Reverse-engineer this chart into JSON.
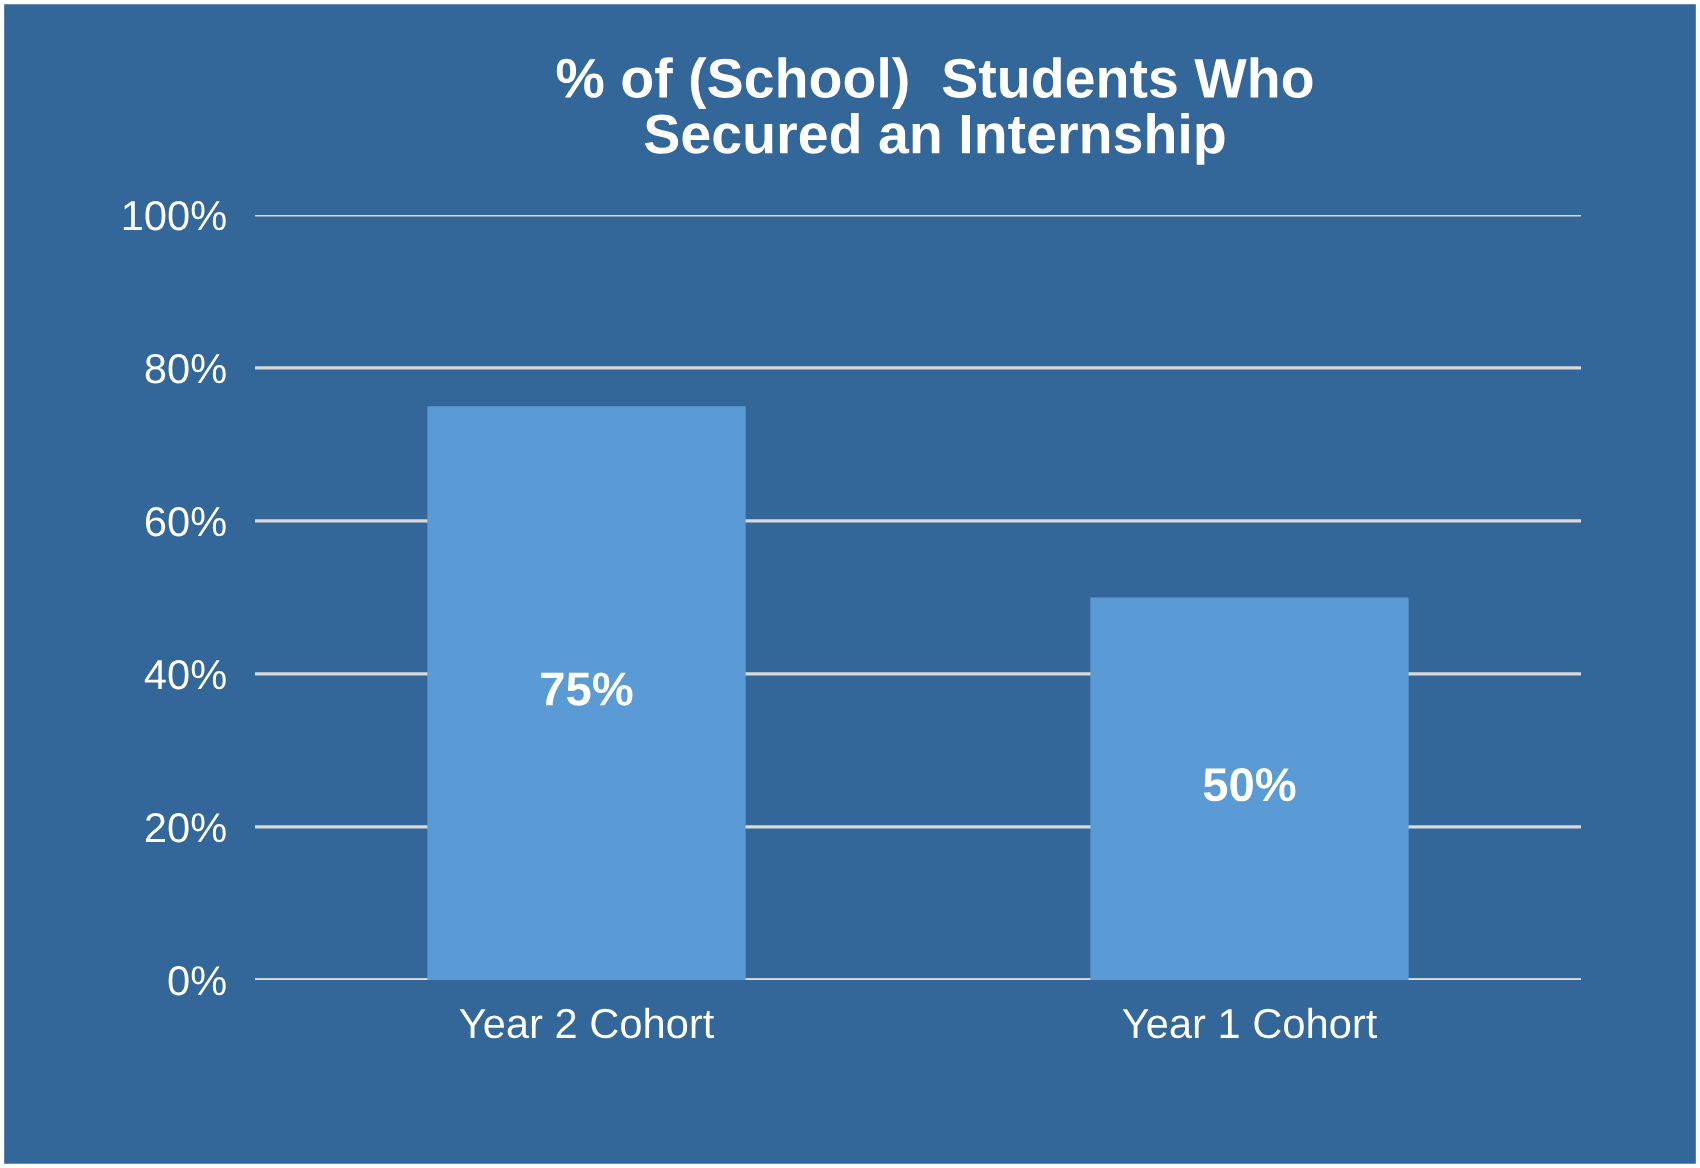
{
  "chart_data": {
    "type": "bar",
    "title": "% of (School)  Students Who\nSecured an Internship",
    "categories": [
      "Year 2 Cohort",
      "Year 1 Cohort"
    ],
    "values": [
      75,
      50
    ],
    "value_labels": [
      "75%",
      "50%"
    ],
    "color": "#5b9bd5",
    "ylim": [
      0,
      100
    ],
    "yticks": [
      {
        "value": 0,
        "label": "0%"
      },
      {
        "value": 20,
        "label": "20%"
      },
      {
        "value": 40,
        "label": "40%"
      },
      {
        "value": 60,
        "label": "60%"
      },
      {
        "value": 80,
        "label": "80%"
      },
      {
        "value": 100,
        "label": "100%"
      }
    ],
    "grid": "y",
    "legend": false
  }
}
